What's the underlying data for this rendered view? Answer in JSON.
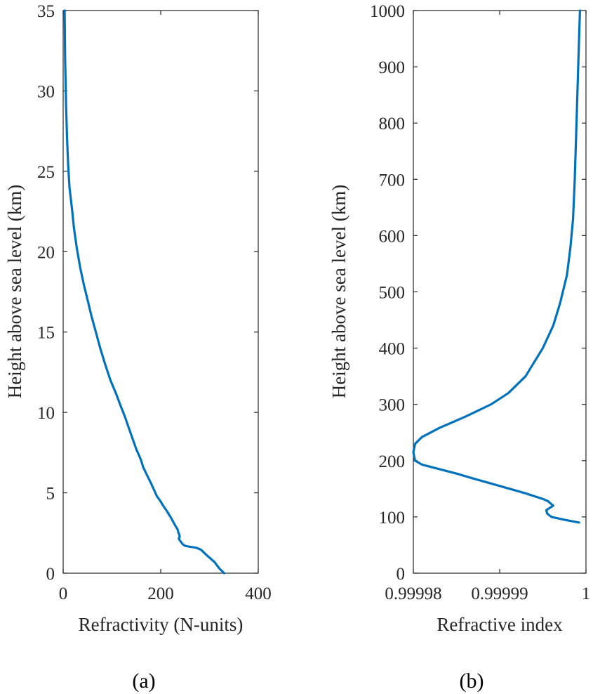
{
  "colors": {
    "series": "#0072BD",
    "axis": "#262626"
  },
  "chart_data": [
    {
      "id": "a",
      "type": "line",
      "caption": "(a)",
      "xlabel": "Refractivity (N-units)",
      "ylabel": "Height above sea level (km)",
      "xlim": [
        0,
        400
      ],
      "ylim": [
        0,
        35
      ],
      "xticks": [
        0,
        200,
        400
      ],
      "xtick_labels": [
        "0",
        "200",
        "400"
      ],
      "yticks": [
        0,
        5,
        10,
        15,
        20,
        25,
        30,
        35
      ],
      "ytick_labels": [
        "0",
        "5",
        "10",
        "15",
        "20",
        "25",
        "30",
        "35"
      ],
      "series": [
        {
          "name": "Refractivity",
          "x": [
            330,
            320,
            310,
            295,
            283,
            276,
            270,
            258,
            250,
            245,
            240,
            237,
            239,
            238,
            236,
            235,
            229,
            222,
            214,
            205,
            199,
            192,
            186,
            180,
            172,
            164,
            160,
            156,
            150,
            142,
            135,
            127,
            118,
            108,
            97,
            86,
            76,
            67,
            58,
            50,
            42,
            35,
            28,
            22,
            18,
            13,
            10,
            8,
            6,
            4,
            3
          ],
          "y": [
            0,
            0.3,
            0.7,
            1.1,
            1.45,
            1.55,
            1.6,
            1.65,
            1.7,
            1.8,
            2.0,
            2.15,
            2.25,
            2.4,
            2.55,
            2.7,
            3.0,
            3.4,
            3.8,
            4.2,
            4.5,
            4.8,
            5.2,
            5.6,
            6.1,
            6.6,
            7.0,
            7.3,
            7.7,
            8.4,
            9.0,
            9.7,
            10.4,
            11.2,
            12.0,
            13.0,
            14.0,
            15.0,
            16.0,
            17.0,
            18.0,
            19.0,
            20.2,
            21.5,
            22.7,
            24.0,
            25.5,
            27.0,
            29.0,
            32.0,
            35.0
          ]
        }
      ]
    },
    {
      "id": "b",
      "type": "line",
      "caption": "(b)",
      "xlabel": "Refractive index",
      "ylabel": "Height above sea level (km)",
      "xlim": [
        0.99998,
        1.0
      ],
      "ylim": [
        0,
        1000
      ],
      "xticks": [
        0.99998,
        0.99999,
        1.0
      ],
      "xtick_labels": [
        "0.99998",
        "0.99999",
        "1"
      ],
      "yticks": [
        0,
        100,
        200,
        300,
        400,
        500,
        600,
        700,
        800,
        900,
        1000
      ],
      "ytick_labels": [
        "0",
        "100",
        "200",
        "300",
        "400",
        "500",
        "600",
        "700",
        "800",
        "900",
        "1000"
      ],
      "series": [
        {
          "name": "Refractive index",
          "x": [
            0.9999992,
            0.9999975,
            0.999996,
            0.9999955,
            0.9999954,
            0.9999962,
            0.9999956,
            0.999995,
            0.999993,
            0.99999,
            0.999987,
            0.999985,
            0.999983,
            0.999981,
            0.9999802,
            0.99998,
            0.9999802,
            0.999981,
            0.999983,
            0.999986,
            0.999989,
            0.999991,
            0.999993,
            0.999994,
            0.999995,
            0.9999962,
            0.999997,
            0.9999978,
            0.9999982,
            0.9999985,
            0.9999987,
            0.9999989,
            0.9999991,
            0.9999993
          ],
          "y": [
            90,
            95,
            100,
            106,
            112,
            120,
            128,
            132,
            142,
            155,
            168,
            177,
            185,
            193,
            200,
            215,
            230,
            242,
            258,
            278,
            300,
            320,
            350,
            375,
            400,
            440,
            480,
            530,
            580,
            630,
            700,
            800,
            900,
            1000
          ]
        }
      ]
    }
  ]
}
